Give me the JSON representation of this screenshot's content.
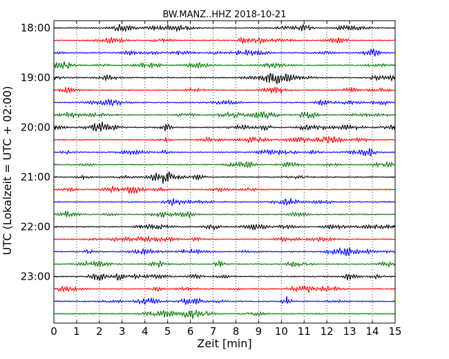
{
  "chart_data": {
    "type": "line",
    "title": "BW.MANZ..HHZ 2018-10-21",
    "xlabel": "Zeit  [min]",
    "ylabel": "UTC (Lokalzeit = UTC + 02:00)",
    "xlim": [
      0,
      15
    ],
    "x_ticks": [
      "0",
      "1",
      "2",
      "3",
      "4",
      "5",
      "6",
      "7",
      "8",
      "9",
      "10",
      "11",
      "12",
      "13",
      "14",
      "15"
    ],
    "y_ticks": [
      "18:00",
      "19:00",
      "20:00",
      "21:00",
      "22:00",
      "23:00"
    ],
    "grid": "vertical dotted at each minute",
    "trace_colors": [
      "#000000",
      "#ff0000",
      "#0000ff",
      "#007700"
    ],
    "traces": [
      {
        "start": "18:00",
        "color": "#000000"
      },
      {
        "start": "18:15",
        "color": "#ff0000"
      },
      {
        "start": "18:30",
        "color": "#0000ff"
      },
      {
        "start": "18:45",
        "color": "#007700"
      },
      {
        "start": "19:00",
        "color": "#000000"
      },
      {
        "start": "19:15",
        "color": "#ff0000"
      },
      {
        "start": "19:30",
        "color": "#0000ff"
      },
      {
        "start": "19:45",
        "color": "#007700"
      },
      {
        "start": "20:00",
        "color": "#000000"
      },
      {
        "start": "20:15",
        "color": "#ff0000"
      },
      {
        "start": "20:30",
        "color": "#0000ff"
      },
      {
        "start": "20:45",
        "color": "#007700"
      },
      {
        "start": "21:00",
        "color": "#000000"
      },
      {
        "start": "21:15",
        "color": "#ff0000"
      },
      {
        "start": "21:30",
        "color": "#0000ff"
      },
      {
        "start": "21:45",
        "color": "#007700"
      },
      {
        "start": "22:00",
        "color": "#000000"
      },
      {
        "start": "22:15",
        "color": "#ff0000"
      },
      {
        "start": "22:30",
        "color": "#0000ff"
      },
      {
        "start": "22:45",
        "color": "#007700"
      },
      {
        "start": "23:00",
        "color": "#000000"
      },
      {
        "start": "23:15",
        "color": "#ff0000"
      },
      {
        "start": "23:30",
        "color": "#0000ff"
      },
      {
        "start": "23:45",
        "color": "#007700"
      }
    ]
  }
}
